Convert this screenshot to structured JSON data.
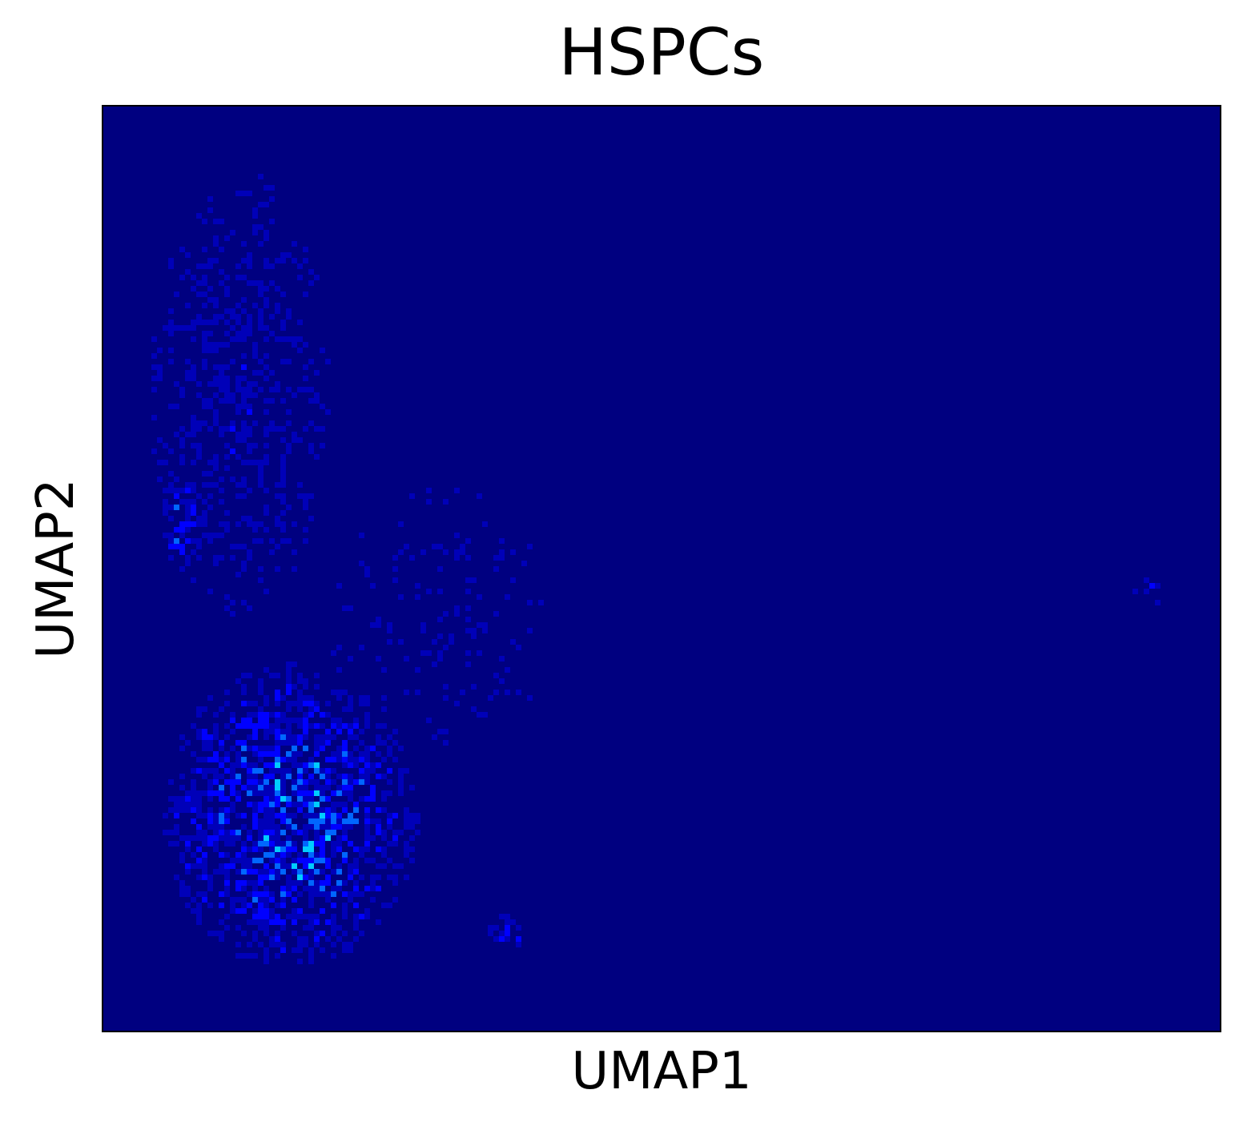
{
  "chart_data": {
    "type": "heatmap",
    "title": "HSPCs",
    "xlabel": "UMAP1",
    "ylabel": "UMAP2",
    "ticks": "none",
    "grid": false,
    "colormap": "jet",
    "colors": {
      "background": "#000080",
      "low": "#0000b8",
      "mid": "#0000ff",
      "high": "#0066ff",
      "peak": "#00ccff"
    },
    "density_regions": [
      {
        "label": "main cluster upper lobe",
        "umap1": [
          0.04,
          0.2
        ],
        "umap2": [
          0.45,
          0.94
        ],
        "density": 0.35
      },
      {
        "label": "main cluster left ridge",
        "umap1": [
          0.05,
          0.09
        ],
        "umap2": [
          0.5,
          0.6
        ],
        "density": 0.7
      },
      {
        "label": "main cluster lower lobe",
        "umap1": [
          0.05,
          0.28
        ],
        "umap2": [
          0.07,
          0.4
        ],
        "density": 0.75
      },
      {
        "label": "sparse bridge",
        "umap1": [
          0.2,
          0.4
        ],
        "umap2": [
          0.3,
          0.6
        ],
        "density": 0.12
      },
      {
        "label": "small cluster bottom",
        "umap1": [
          0.34,
          0.38
        ],
        "umap2": [
          0.09,
          0.13
        ],
        "density": 0.6
      },
      {
        "label": "small cluster right",
        "umap1": [
          0.92,
          0.95
        ],
        "umap2": [
          0.46,
          0.5
        ],
        "density": 0.5
      }
    ]
  }
}
